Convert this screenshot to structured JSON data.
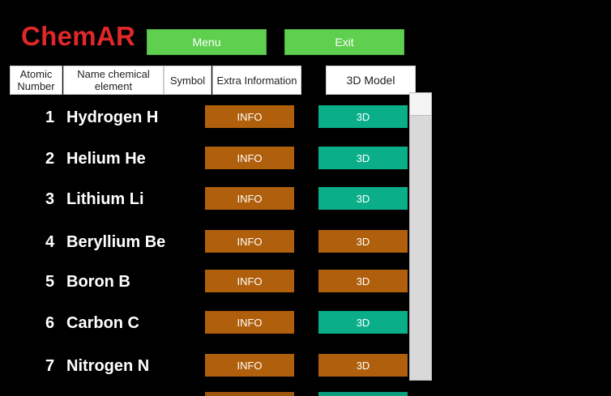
{
  "app": {
    "title": "ChemAR",
    "title_color": "#e0282a",
    "menu_label": "Menu",
    "exit_label": "Exit",
    "button_color": "#5ecf4e"
  },
  "table": {
    "headers": {
      "atomic_number": "Atomic Number",
      "name": "Name chemical element",
      "symbol": "Symbol",
      "extra": "Extra Information",
      "model": "3D Model"
    },
    "colors": {
      "info": "#b0600c",
      "model_teal": "#0aaf8a",
      "model_orange": "#b0600c"
    },
    "rows": [
      {
        "number": "1",
        "name": "Hydrogen H",
        "info_label": "INFO",
        "model_label": "3D",
        "model_color": "#0aaf8a"
      },
      {
        "number": "2",
        "name": "Helium He",
        "info_label": "INFO",
        "model_label": "3D",
        "model_color": "#0aaf8a"
      },
      {
        "number": "3",
        "name": "Lithium Li",
        "info_label": "INFO",
        "model_label": "3D",
        "model_color": "#0aaf8a"
      },
      {
        "number": "4",
        "name": "Beryllium Be",
        "info_label": "INFO",
        "model_label": "3D",
        "model_color": "#b0600c"
      },
      {
        "number": "5",
        "name": "Boron B",
        "info_label": "INFO",
        "model_label": "3D",
        "model_color": "#b0600c"
      },
      {
        "number": "6",
        "name": "Carbon C",
        "info_label": "INFO",
        "model_label": "3D",
        "model_color": "#0aaf8a"
      },
      {
        "number": "7",
        "name": "Nitrogen N",
        "info_label": "INFO",
        "model_label": "3D",
        "model_color": "#b0600c"
      }
    ]
  }
}
